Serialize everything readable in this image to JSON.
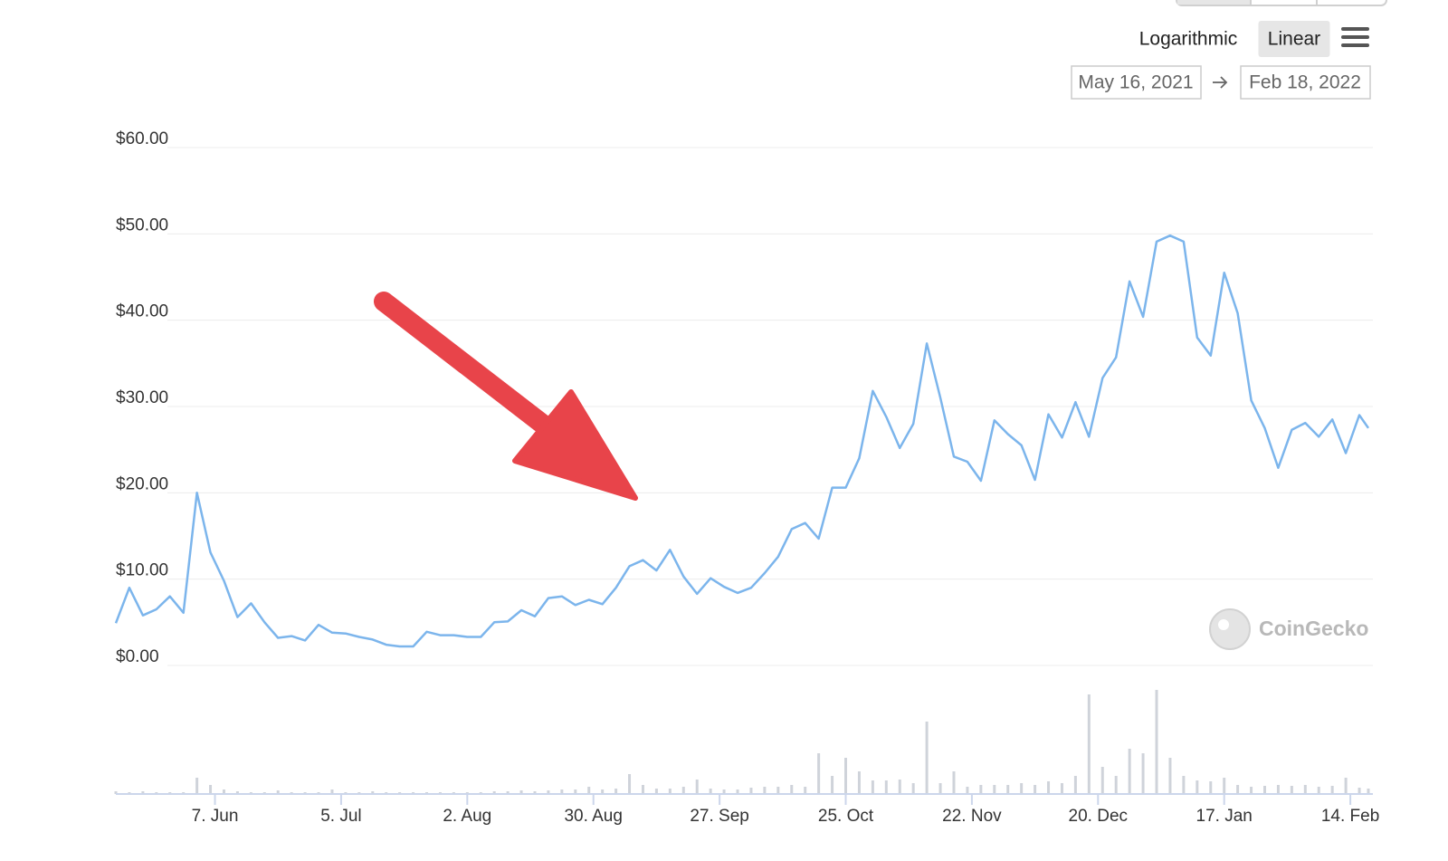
{
  "chart_data": {
    "type": "line",
    "scale_options": [
      "Logarithmic",
      "Linear"
    ],
    "log_scale": false,
    "date_range": [
      "May 16, 2021",
      "Feb 18, 2022"
    ],
    "watermark": "CoinGecko",
    "xlim": [
      "2021-05-16",
      "2022-02-18"
    ],
    "xticks": [
      {
        "value": "2021-06-07",
        "label": "7. Jun"
      },
      {
        "value": "2021-07-05",
        "label": "5. Jul"
      },
      {
        "value": "2021-08-02",
        "label": "2. Aug"
      },
      {
        "value": "2021-08-30",
        "label": "30. Aug"
      },
      {
        "value": "2021-09-27",
        "label": "27. Sep"
      },
      {
        "value": "2021-10-25",
        "label": "25. Oct"
      },
      {
        "value": "2021-11-22",
        "label": "22. Nov"
      },
      {
        "value": "2021-12-20",
        "label": "20. Dec"
      },
      {
        "value": "2022-01-17",
        "label": "17. Jan"
      },
      {
        "value": "2022-02-14",
        "label": "14. Feb"
      }
    ],
    "ylim": [
      0,
      60
    ],
    "yticks": [
      {
        "value": 0,
        "label": "$0.00"
      },
      {
        "value": 10,
        "label": "$10.00"
      },
      {
        "value": 20,
        "label": "$20.00"
      },
      {
        "value": 30,
        "label": "$30.00"
      },
      {
        "value": 40,
        "label": "$40.00"
      },
      {
        "value": 50,
        "label": "$50.00"
      },
      {
        "value": 60,
        "label": "$60.00"
      }
    ],
    "grid": true,
    "x": [
      "2021-05-16",
      "2021-05-19",
      "2021-05-22",
      "2021-05-25",
      "2021-05-28",
      "2021-05-31",
      "2021-06-03",
      "2021-06-06",
      "2021-06-09",
      "2021-06-12",
      "2021-06-15",
      "2021-06-18",
      "2021-06-21",
      "2021-06-24",
      "2021-06-27",
      "2021-06-30",
      "2021-07-03",
      "2021-07-06",
      "2021-07-09",
      "2021-07-12",
      "2021-07-15",
      "2021-07-18",
      "2021-07-21",
      "2021-07-24",
      "2021-07-27",
      "2021-07-30",
      "2021-08-02",
      "2021-08-05",
      "2021-08-08",
      "2021-08-11",
      "2021-08-14",
      "2021-08-17",
      "2021-08-20",
      "2021-08-23",
      "2021-08-26",
      "2021-08-29",
      "2021-09-01",
      "2021-09-04",
      "2021-09-07",
      "2021-09-10",
      "2021-09-13",
      "2021-09-16",
      "2021-09-19",
      "2021-09-22",
      "2021-09-25",
      "2021-09-28",
      "2021-10-01",
      "2021-10-04",
      "2021-10-07",
      "2021-10-10",
      "2021-10-13",
      "2021-10-16",
      "2021-10-19",
      "2021-10-22",
      "2021-10-25",
      "2021-10-28",
      "2021-10-31",
      "2021-11-03",
      "2021-11-06",
      "2021-11-09",
      "2021-11-12",
      "2021-11-15",
      "2021-11-18",
      "2021-11-21",
      "2021-11-24",
      "2021-11-27",
      "2021-11-30",
      "2021-12-03",
      "2021-12-06",
      "2021-12-09",
      "2021-12-12",
      "2021-12-15",
      "2021-12-18",
      "2021-12-21",
      "2021-12-24",
      "2021-12-27",
      "2021-12-30",
      "2022-01-02",
      "2022-01-05",
      "2022-01-08",
      "2022-01-11",
      "2022-01-14",
      "2022-01-17",
      "2022-01-20",
      "2022-01-23",
      "2022-01-26",
      "2022-01-29",
      "2022-02-01",
      "2022-02-04",
      "2022-02-07",
      "2022-02-10",
      "2022-02-13",
      "2022-02-16",
      "2022-02-18"
    ],
    "series": [
      {
        "color": "#7cb5ec",
        "values": [
          4.9,
          9.0,
          5.8,
          6.5,
          8.0,
          6.1,
          20.0,
          13.1,
          9.8,
          5.6,
          7.2,
          5.0,
          3.2,
          3.4,
          2.9,
          4.7,
          3.8,
          3.7,
          3.3,
          3.0,
          2.4,
          2.2,
          2.2,
          3.9,
          3.5,
          3.5,
          3.3,
          3.3,
          5.0,
          5.1,
          6.4,
          5.7,
          7.8,
          8.0,
          7.0,
          7.6,
          7.1,
          9.0,
          11.5,
          12.2,
          11.0,
          13.4,
          10.3,
          8.3,
          10.1,
          9.1,
          8.4,
          9.0,
          10.7,
          12.6,
          15.8,
          16.5,
          14.7,
          20.6,
          20.6,
          24.0,
          31.8,
          28.8,
          25.2,
          28.0,
          37.3,
          31.0,
          24.2,
          23.6,
          21.4,
          28.4,
          26.8,
          25.5,
          21.5,
          29.1,
          26.4,
          30.5,
          26.5,
          33.3,
          35.7,
          44.5,
          40.4,
          49.1,
          49.8,
          49.1,
          38.0,
          35.9,
          45.5,
          40.8,
          30.7,
          27.5,
          22.9,
          27.3,
          28.1,
          26.5,
          28.5,
          24.6,
          29.0,
          27.5
        ]
      }
    ],
    "volume": {
      "color": "#cfd3da",
      "values": [
        3,
        2,
        3,
        2,
        2,
        2,
        18,
        10,
        5,
        3,
        2,
        2,
        4,
        2,
        2,
        2,
        5,
        2,
        2,
        3,
        2,
        2,
        2,
        2,
        2,
        2,
        2,
        2,
        3,
        3,
        4,
        3,
        4,
        5,
        5,
        8,
        5,
        6,
        22,
        10,
        6,
        6,
        8,
        16,
        6,
        5,
        5,
        7,
        8,
        8,
        10,
        8,
        45,
        20,
        40,
        25,
        15,
        15,
        16,
        12,
        80,
        12,
        25,
        8,
        10,
        10,
        10,
        12,
        10,
        14,
        12,
        20,
        110,
        30,
        20,
        50,
        45,
        115,
        40,
        20,
        15,
        14,
        18,
        10,
        8,
        9,
        10,
        9,
        10,
        8,
        9,
        18,
        7,
        6
      ]
    }
  }
}
